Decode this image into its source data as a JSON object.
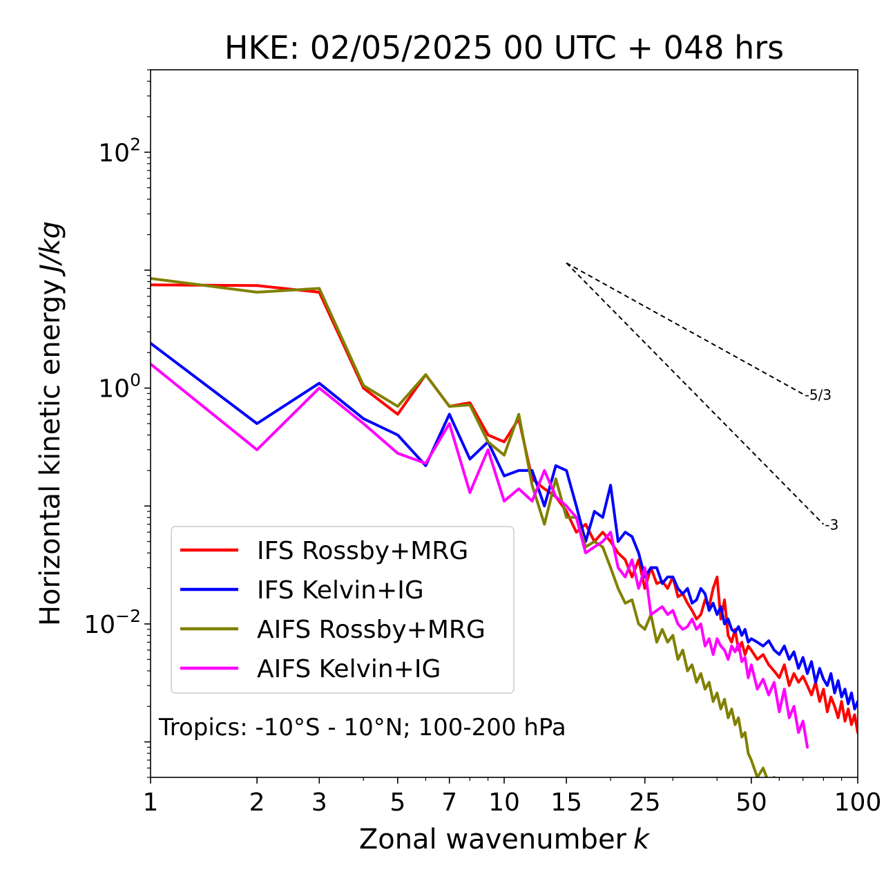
{
  "chart_data": {
    "type": "line",
    "title": "HKE: 02/05/2025 00 UTC + 048 hrs",
    "xlabel": "Zonal wavenumber",
    "xlabel_var": "k",
    "ylabel": "Horizontal kinetic energy",
    "ylabel_units": "J/kg",
    "xscale": "log",
    "yscale": "log",
    "xlim": [
      1,
      100
    ],
    "ylim": [
      0.0005,
      500
    ],
    "x_ticks": [
      {
        "v": 1,
        "label": "1"
      },
      {
        "v": 2,
        "label": "2"
      },
      {
        "v": 3,
        "label": "3"
      },
      {
        "v": 5,
        "label": "5"
      },
      {
        "v": 7,
        "label": "7"
      },
      {
        "v": 10,
        "label": "10"
      },
      {
        "v": 15,
        "label": "15"
      },
      {
        "v": 25,
        "label": "25"
      },
      {
        "v": 50,
        "label": "50"
      },
      {
        "v": 100,
        "label": "100"
      }
    ],
    "y_ticks": [
      {
        "v": 100,
        "base": "10",
        "exp": "2"
      },
      {
        "v": 1,
        "base": "10",
        "exp": "0"
      },
      {
        "v": 0.01,
        "base": "10",
        "exp": "−2"
      }
    ],
    "legend_position": "lower-left",
    "annotation": "Tropics: -10°S - 10°N; 100-200 hPa",
    "reference_slopes": [
      {
        "label": "-5/3",
        "x_start": 15,
        "x_end": 70,
        "y_start": 11.5,
        "y_end": 0.89
      },
      {
        "label": "-3",
        "x_start": 15,
        "x_end": 80,
        "y_start": 11.5,
        "y_end": 0.07
      }
    ],
    "series": [
      {
        "name": "IFS Rossby+MRG",
        "color": "#ff0000",
        "x": [
          1,
          2,
          3,
          4,
          5,
          6,
          7,
          8,
          9,
          10,
          11,
          12,
          13,
          14,
          15,
          16,
          17,
          18,
          19,
          20,
          21,
          22,
          23,
          24,
          25,
          26,
          27,
          28,
          29,
          30,
          31,
          32,
          33,
          34,
          35,
          36,
          37,
          38,
          39,
          40,
          41,
          42,
          43,
          44,
          45,
          46,
          47,
          48,
          49,
          50,
          52,
          54,
          56,
          58,
          60,
          62,
          64,
          66,
          68,
          70,
          72,
          74,
          76,
          78,
          80,
          82,
          84,
          86,
          88,
          90,
          92,
          94,
          96,
          98,
          100
        ],
        "y": [
          7.5,
          7.4,
          6.5,
          1.0,
          0.6,
          1.3,
          0.7,
          0.75,
          0.4,
          0.35,
          0.55,
          0.17,
          0.14,
          0.12,
          0.09,
          0.06,
          0.07,
          0.05,
          0.06,
          0.05,
          0.04,
          0.035,
          0.025,
          0.035,
          0.02,
          0.03,
          0.022,
          0.023,
          0.02,
          0.025,
          0.017,
          0.018,
          0.015,
          0.013,
          0.011,
          0.012,
          0.016,
          0.014,
          0.02,
          0.025,
          0.011,
          0.016,
          0.008,
          0.007,
          0.009,
          0.006,
          0.007,
          0.0055,
          0.0065,
          0.006,
          0.005,
          0.0055,
          0.0045,
          0.004,
          0.0035,
          0.0045,
          0.003,
          0.0038,
          0.0032,
          0.0036,
          0.003,
          0.0025,
          0.0032,
          0.0022,
          0.0028,
          0.0018,
          0.0024,
          0.002,
          0.0016,
          0.0022,
          0.0015,
          0.0019,
          0.0014,
          0.0017,
          0.0012
        ]
      },
      {
        "name": "IFS Kelvin+IG",
        "color": "#0000ff",
        "x": [
          1,
          2,
          3,
          4,
          5,
          6,
          7,
          8,
          9,
          10,
          11,
          12,
          13,
          14,
          15,
          16,
          17,
          18,
          19,
          20,
          21,
          22,
          23,
          24,
          25,
          26,
          27,
          28,
          29,
          30,
          31,
          32,
          33,
          34,
          35,
          36,
          37,
          38,
          39,
          40,
          41,
          42,
          43,
          44,
          45,
          46,
          47,
          48,
          49,
          50,
          52,
          54,
          56,
          58,
          60,
          62,
          64,
          66,
          68,
          70,
          72,
          74,
          76,
          78,
          80,
          82,
          84,
          86,
          88,
          90,
          92,
          94,
          96,
          98,
          100
        ],
        "y": [
          2.4,
          0.5,
          1.1,
          0.55,
          0.4,
          0.22,
          0.6,
          0.25,
          0.35,
          0.18,
          0.2,
          0.2,
          0.1,
          0.22,
          0.2,
          0.1,
          0.05,
          0.09,
          0.08,
          0.15,
          0.05,
          0.06,
          0.055,
          0.04,
          0.025,
          0.03,
          0.03,
          0.022,
          0.025,
          0.025,
          0.02,
          0.018,
          0.02,
          0.015,
          0.016,
          0.02,
          0.018,
          0.013,
          0.015,
          0.012,
          0.014,
          0.01,
          0.011,
          0.009,
          0.0085,
          0.0095,
          0.008,
          0.009,
          0.007,
          0.0075,
          0.007,
          0.0065,
          0.0072,
          0.006,
          0.0055,
          0.0065,
          0.005,
          0.0058,
          0.0042,
          0.0052,
          0.0038,
          0.0048,
          0.0032,
          0.0042,
          0.0034,
          0.003,
          0.0038,
          0.0026,
          0.0033,
          0.0024,
          0.0028,
          0.0021,
          0.0026,
          0.0019,
          0.0022
        ]
      },
      {
        "name": "AIFS Rossby+MRG",
        "color": "#808000",
        "x": [
          1,
          2,
          3,
          4,
          5,
          6,
          7,
          8,
          9,
          10,
          11,
          12,
          13,
          14,
          15,
          16,
          17,
          18,
          19,
          20,
          21,
          22,
          23,
          24,
          25,
          26,
          27,
          28,
          29,
          30,
          31,
          32,
          33,
          34,
          35,
          36,
          37,
          38,
          39,
          40,
          41,
          42,
          43,
          44,
          45,
          46,
          47,
          48,
          49,
          50,
          52,
          54,
          56,
          58,
          60,
          62
        ],
        "y": [
          8.5,
          6.5,
          7.0,
          1.05,
          0.7,
          1.3,
          0.7,
          0.72,
          0.35,
          0.27,
          0.6,
          0.15,
          0.07,
          0.17,
          0.08,
          0.08,
          0.045,
          0.05,
          0.045,
          0.03,
          0.02,
          0.015,
          0.016,
          0.01,
          0.009,
          0.012,
          0.007,
          0.009,
          0.007,
          0.008,
          0.005,
          0.006,
          0.004,
          0.0045,
          0.0032,
          0.0038,
          0.0028,
          0.0032,
          0.0022,
          0.0026,
          0.0019,
          0.0023,
          0.0016,
          0.0019,
          0.0014,
          0.0016,
          0.0011,
          0.0012,
          0.0008,
          0.0007,
          0.0005,
          0.0006,
          0.00045,
          0.0005,
          0.00042,
          0.0004
        ]
      },
      {
        "name": "AIFS Kelvin+IG",
        "color": "#ff00ff",
        "x": [
          1,
          2,
          3,
          4,
          5,
          6,
          7,
          8,
          9,
          10,
          11,
          12,
          13,
          14,
          15,
          16,
          17,
          18,
          19,
          20,
          21,
          22,
          23,
          24,
          25,
          26,
          27,
          28,
          29,
          30,
          31,
          32,
          33,
          34,
          35,
          36,
          37,
          38,
          39,
          40,
          41,
          42,
          43,
          44,
          45,
          46,
          47,
          48,
          49,
          50,
          52,
          54,
          56,
          58,
          60,
          62,
          64,
          66,
          68,
          70,
          72
        ],
        "y": [
          1.6,
          0.3,
          1.0,
          0.5,
          0.28,
          0.23,
          0.5,
          0.13,
          0.3,
          0.11,
          0.14,
          0.11,
          0.2,
          0.12,
          0.1,
          0.08,
          0.04,
          0.045,
          0.05,
          0.06,
          0.03,
          0.025,
          0.035,
          0.02,
          0.03,
          0.012,
          0.013,
          0.014,
          0.012,
          0.013,
          0.01,
          0.009,
          0.0095,
          0.011,
          0.009,
          0.01,
          0.0065,
          0.0075,
          0.0055,
          0.0075,
          0.0065,
          0.006,
          0.005,
          0.0065,
          0.0058,
          0.0068,
          0.0048,
          0.0052,
          0.0035,
          0.0045,
          0.0028,
          0.0034,
          0.0025,
          0.0032,
          0.0018,
          0.0028,
          0.0016,
          0.002,
          0.0012,
          0.0015,
          0.0009
        ]
      }
    ]
  }
}
